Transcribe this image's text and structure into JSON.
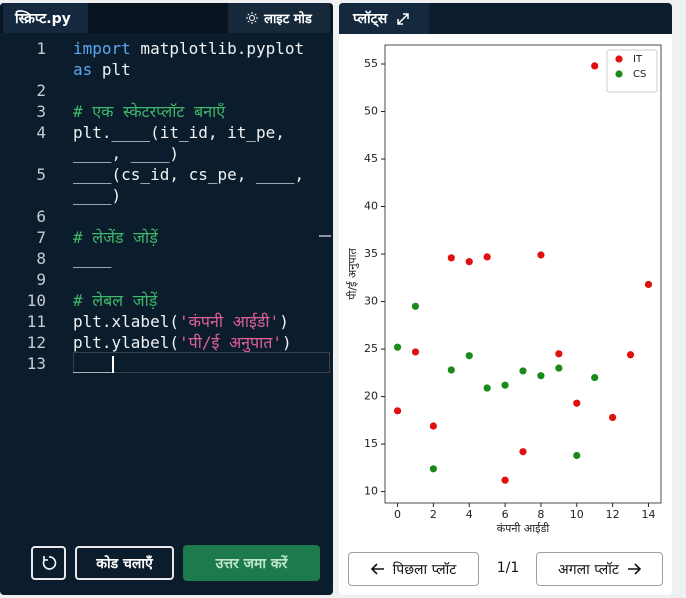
{
  "header": {
    "tab": "स्क्रिप्ट.py",
    "theme_button": "लाइट मोड",
    "plots_tab": "प्लॉट्स"
  },
  "editor": {
    "rows": [
      {
        "num": 1,
        "parts": [
          {
            "text": "import",
            "kind": "keyword"
          },
          {
            "text": " matplotlib.pyplot",
            "kind": "plain"
          }
        ]
      },
      {
        "parts": [
          {
            "text": "as",
            "kind": "keyword"
          },
          {
            "text": " plt",
            "kind": "plain"
          }
        ]
      },
      {
        "num": 2,
        "parts": []
      },
      {
        "num": 3,
        "parts": [
          {
            "text": "# एक स्केटरप्लॉट बनाएँ",
            "kind": "comment"
          }
        ]
      },
      {
        "num": 4,
        "parts": [
          {
            "text": "plt.____(it_id, it_pe,",
            "kind": "plain"
          }
        ]
      },
      {
        "parts": [
          {
            "text": "____, ____)",
            "kind": "plain"
          }
        ]
      },
      {
        "num": 5,
        "parts": [
          {
            "text": "____(cs_id, cs_pe, ____,",
            "kind": "plain"
          }
        ]
      },
      {
        "parts": [
          {
            "text": "____)",
            "kind": "plain"
          }
        ]
      },
      {
        "num": 6,
        "parts": []
      },
      {
        "num": 7,
        "parts": [
          {
            "text": "# लेजेंड जोड़ें",
            "kind": "comment"
          }
        ]
      },
      {
        "num": 8,
        "parts": [
          {
            "text": "____",
            "kind": "plain"
          }
        ]
      },
      {
        "num": 9,
        "parts": []
      },
      {
        "num": 10,
        "parts": [
          {
            "text": "# लेबल जोड़ें",
            "kind": "comment"
          }
        ]
      },
      {
        "num": 11,
        "parts": [
          {
            "text": "plt.xlabel(",
            "kind": "plain"
          },
          {
            "text": "'कंपनी आईडी'",
            "kind": "string"
          },
          {
            "text": ")",
            "kind": "plain"
          }
        ]
      },
      {
        "num": 12,
        "parts": [
          {
            "text": "plt.ylabel(",
            "kind": "plain"
          },
          {
            "text": "'पी/ई अनुपात'",
            "kind": "string"
          },
          {
            "text": ")",
            "kind": "plain"
          }
        ]
      },
      {
        "num": 13,
        "parts": [
          {
            "text": "____",
            "kind": "plain"
          }
        ],
        "current": true
      }
    ]
  },
  "buttons": {
    "run": "कोड चलाएँ",
    "submit": "उत्तर जमा करें",
    "prev": "पिछला प्लॉट",
    "counter": "1/1",
    "next": "अगला प्लॉट"
  },
  "chart_data": {
    "type": "scatter",
    "xlabel": "कंपनी आईडी",
    "ylabel": "पी/ई अनुपात",
    "xlim": [
      -0.7,
      14.7
    ],
    "ylim": [
      8.8,
      57.0
    ],
    "xticks": [
      0,
      2,
      4,
      6,
      8,
      10,
      12,
      14
    ],
    "yticks": [
      10,
      15,
      20,
      25,
      30,
      35,
      40,
      45,
      50,
      55
    ],
    "legend": "upper right",
    "series": [
      {
        "name": "IT",
        "color": "#e01010",
        "x": [
          0,
          1,
          2,
          3,
          4,
          5,
          6,
          7,
          8,
          9,
          10,
          11,
          12,
          13,
          14
        ],
        "values": [
          18.5,
          24.7,
          16.9,
          34.6,
          34.2,
          34.7,
          11.2,
          14.2,
          34.9,
          24.5,
          19.3,
          54.8,
          17.8,
          24.4,
          31.8
        ]
      },
      {
        "name": "CS",
        "color": "#1a8a1a",
        "x": [
          0,
          1,
          2,
          3,
          4,
          5,
          6,
          7,
          8,
          9,
          10,
          11
        ],
        "values": [
          25.2,
          29.5,
          12.4,
          22.8,
          24.3,
          20.9,
          21.2,
          22.7,
          22.2,
          23.0,
          13.8,
          22.0
        ]
      }
    ]
  }
}
